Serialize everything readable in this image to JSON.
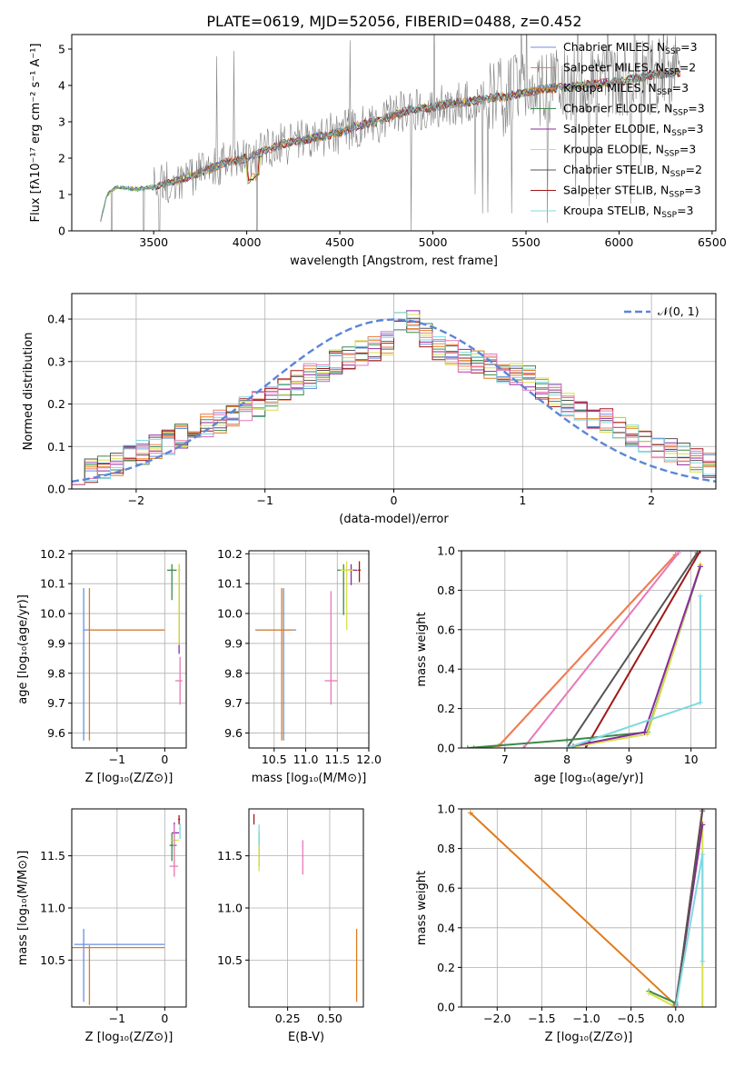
{
  "figure": {
    "title": "PLATE=0619, MJD=52056, FIBERID=0488, z=0.452"
  },
  "colors": {
    "Chabrier MILES": "#6a8fe0",
    "Salpeter MILES": "#f07d57",
    "Kroupa MILES": "#e07b1a",
    "Chabrier ELODIE": "#3d8a4a",
    "Salpeter ELODIE": "#8a2a9e",
    "Kroupa ELODIE": "#d8e04a",
    "Chabrier STELIB": "#555555",
    "Salpeter STELIB": "#a01818",
    "Kroupa STELIB": "#7fd8e0",
    "Kroupa STELIB pink": "#e878b8",
    "data": "#808080",
    "normal": "#5b86d6"
  },
  "chart_data": [
    {
      "id": "spectrum",
      "type": "line",
      "xlabel": "wavelength [Angstrom, rest frame]",
      "ylabel": "Flux [fλ10⁻¹⁷ erg cm⁻² s⁻¹ A⁻¹]",
      "xlim": [
        3060,
        6520
      ],
      "ylim": [
        0,
        5.4
      ],
      "xticks": [
        "3500",
        "4000",
        "4500",
        "5000",
        "5500",
        "6000",
        "6500"
      ],
      "yticks": [
        "0",
        "1",
        "2",
        "3",
        "4",
        "5"
      ],
      "legend_position": "top-right",
      "legend": [
        {
          "label": "Chabrier MILES, N",
          "n": "3",
          "color": "#6a8fe0"
        },
        {
          "label": "Salpeter MILES, N",
          "n": "2",
          "color": "#f07d57"
        },
        {
          "label": "Kroupa MILES, N",
          "n": "3",
          "color": "#e07b1a"
        },
        {
          "label": "Chabrier ELODIE, N",
          "n": "3",
          "color": "#3d8a4a"
        },
        {
          "label": "Salpeter ELODIE, N",
          "n": "3",
          "color": "#8a2a9e"
        },
        {
          "label": "Kroupa ELODIE, N",
          "n": "3",
          "color": "#d8e04a"
        },
        {
          "label": "Chabrier STELIB, N",
          "n": "2",
          "color": "#555555"
        },
        {
          "label": "Salpeter STELIB, N",
          "n": "3",
          "color": "#a01818"
        },
        {
          "label": "Kroupa STELIB, N",
          "n": "3",
          "color": "#7fd8e0"
        }
      ],
      "legend_subscript": "SSP",
      "data_x": [
        3200,
        3250,
        3300,
        3400,
        3500,
        3600,
        3700,
        3800,
        3900,
        4000,
        4100,
        4200,
        4300,
        4400,
        4500,
        4600,
        4700,
        4800,
        4900,
        5000,
        5100,
        5200,
        5300,
        5400,
        5500,
        5600,
        5700,
        5800,
        5900,
        6000,
        6100,
        6200,
        6300
      ],
      "data_y": [
        0.0,
        1.0,
        1.2,
        1.15,
        1.2,
        1.35,
        1.5,
        1.7,
        1.9,
        2.0,
        2.2,
        2.4,
        2.5,
        2.6,
        2.7,
        2.9,
        3.0,
        3.2,
        3.35,
        3.4,
        3.5,
        3.55,
        3.65,
        3.7,
        3.8,
        3.9,
        3.95,
        4.0,
        4.05,
        4.1,
        4.2,
        4.3,
        4.35
      ]
    },
    {
      "id": "residual-histogram",
      "type": "line",
      "xlabel": "(data-model)/error",
      "ylabel": "Normed distribution",
      "xlim": [
        -2.5,
        2.5
      ],
      "ylim": [
        0,
        0.46
      ],
      "xticks": [
        "−2",
        "−1",
        "0",
        "1",
        "2"
      ],
      "yticks": [
        "0.0",
        "0.1",
        "0.2",
        "0.3",
        "0.4"
      ],
      "legend": [
        {
          "label": "𝒩(0, 1)",
          "color": "#5b86d6"
        }
      ],
      "legend_position": "top-right",
      "bin_centers": [
        -2.45,
        -2.35,
        -2.25,
        -2.15,
        -2.05,
        -1.95,
        -1.85,
        -1.75,
        -1.65,
        -1.55,
        -1.45,
        -1.35,
        -1.25,
        -1.15,
        -1.05,
        -0.95,
        -0.85,
        -0.75,
        -0.65,
        -0.55,
        -0.45,
        -0.35,
        -0.25,
        -0.15,
        -0.05,
        0.05,
        0.15,
        0.25,
        0.35,
        0.45,
        0.55,
        0.65,
        0.75,
        0.85,
        0.95,
        1.05,
        1.15,
        1.25,
        1.35,
        1.45,
        1.55,
        1.65,
        1.75,
        1.85,
        1.95,
        2.05,
        2.15,
        2.25,
        2.35,
        2.45
      ],
      "hist_values": [
        0.04,
        0.045,
        0.05,
        0.06,
        0.075,
        0.085,
        0.1,
        0.11,
        0.125,
        0.14,
        0.15,
        0.16,
        0.175,
        0.19,
        0.2,
        0.215,
        0.23,
        0.25,
        0.265,
        0.28,
        0.3,
        0.31,
        0.32,
        0.33,
        0.345,
        0.4,
        0.39,
        0.36,
        0.33,
        0.32,
        0.3,
        0.3,
        0.29,
        0.28,
        0.27,
        0.26,
        0.24,
        0.22,
        0.2,
        0.18,
        0.17,
        0.16,
        0.15,
        0.13,
        0.115,
        0.1,
        0.09,
        0.08,
        0.065,
        0.055
      ]
    },
    {
      "id": "age-vs-Z",
      "type": "scatter",
      "xlabel": "Z [log₁₀(Z/Z⊙)]",
      "ylabel": "age  [log₁₀(age/yr)]",
      "xlim": [
        -1.95,
        0.45
      ],
      "ylim": [
        9.55,
        10.21
      ],
      "xticks": [
        "−1",
        "0"
      ],
      "yticks": [
        "9.6",
        "9.7",
        "9.8",
        "9.9",
        "10.0",
        "10.1",
        "10.2"
      ]
    },
    {
      "id": "age-vs-mass",
      "type": "scatter",
      "xlabel": "mass [log₁₀(M/M⊙)]",
      "xlim": [
        10.1,
        12.0
      ],
      "ylim": [
        9.55,
        10.21
      ],
      "xticks": [
        "10.5",
        "11.0",
        "11.5",
        "12.0"
      ],
      "yticks": [
        "9.6",
        "9.7",
        "9.8",
        "9.9",
        "10.0",
        "10.1",
        "10.2"
      ]
    },
    {
      "id": "weight-vs-age",
      "type": "line",
      "xlabel": "age  [log₁₀(age/yr)]",
      "ylabel": "mass weight",
      "xlim": [
        6.3,
        10.4
      ],
      "ylim": [
        0,
        1
      ],
      "xticks": [
        "7",
        "8",
        "9",
        "10"
      ],
      "yticks": [
        "0.0",
        "0.2",
        "0.4",
        "0.6",
        "0.8",
        "1.0"
      ]
    },
    {
      "id": "mass-vs-Z",
      "type": "scatter",
      "xlabel": "Z [log₁₀(Z/Z⊙)]",
      "ylabel": "mass [log₁₀(M/M⊙)]",
      "xlim": [
        -1.95,
        0.45
      ],
      "ylim": [
        10.05,
        11.95
      ],
      "xticks": [
        "−1",
        "0"
      ],
      "yticks": [
        "10.5",
        "11.0",
        "11.5"
      ]
    },
    {
      "id": "mass-vs-ebv",
      "type": "scatter",
      "xlabel": "E(B-V)",
      "xlim": [
        0.02,
        0.7
      ],
      "ylim": [
        10.05,
        11.95
      ],
      "xticks": [
        "0.25",
        "0.50"
      ],
      "yticks": [
        "10.5",
        "11.0",
        "11.5"
      ]
    },
    {
      "id": "weight-vs-Z",
      "type": "line",
      "xlabel": "Z [log₁₀(Z/Z⊙)]",
      "ylabel": "mass weight",
      "xlim": [
        -2.4,
        0.45
      ],
      "ylim": [
        0,
        1
      ],
      "xticks": [
        "−2.0",
        "−1.5",
        "−1.0",
        "−0.5",
        "0.0"
      ],
      "yticks": [
        "0.0",
        "0.2",
        "0.4",
        "0.6",
        "0.8",
        "1.0"
      ]
    }
  ]
}
